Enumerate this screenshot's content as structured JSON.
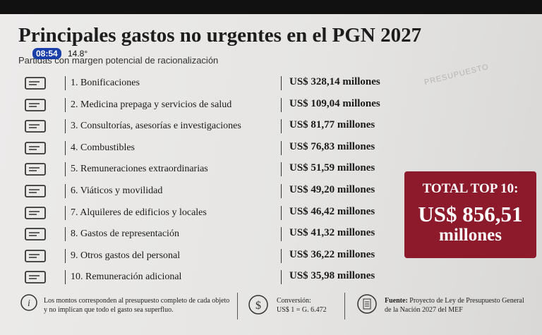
{
  "header": {
    "title": "Principales gastos no urgentes en el PGN 2027",
    "subtitle": "Partidas con margen potencial de racionalización",
    "clock": "08:54",
    "temperature": "14.8°"
  },
  "background": {
    "stamp": "PRESUPUESTO"
  },
  "table": {
    "rows": [
      [
        "1. Bonificaciones",
        "US$ 328,14 millones"
      ],
      [
        "2. Medicina prepaga y servicios de salud",
        "US$ 109,04 millones"
      ],
      [
        "3. Consultorías, asesorías e investigaciones",
        "US$ 81,77 millones"
      ],
      [
        "4. Combustibles",
        "US$ 76,83 millones"
      ],
      [
        "5. Remuneraciones extraordinarias",
        "US$ 51,59 millones"
      ],
      [
        "6. Viáticos y movilidad",
        "US$ 49,20 millones"
      ],
      [
        "7. Alquileres de edificios y locales",
        "US$ 46,42 millones"
      ],
      [
        "8. Gastos de representación",
        "US$ 41,32 millones"
      ],
      [
        "9. Otros gastos del personal",
        "US$ 36,22 millones"
      ],
      [
        "10. Remuneración adicional",
        "US$ 35,98 millones"
      ]
    ]
  },
  "total": {
    "label": "TOTAL TOP 10:",
    "amount": "US$ 856,51",
    "unit": "millones"
  },
  "footer": {
    "note": "Los montos corresponden al presupuesto completo de cada objeto y no implican que todo el gasto sea superfluo.",
    "conversion_label": "Conversión:",
    "conversion": "US$ 1 = G. 6.472",
    "source_label": "Fuente:",
    "source": "Proyecto de Ley de Presupuesto General de la Nación 2027 del MEF"
  }
}
